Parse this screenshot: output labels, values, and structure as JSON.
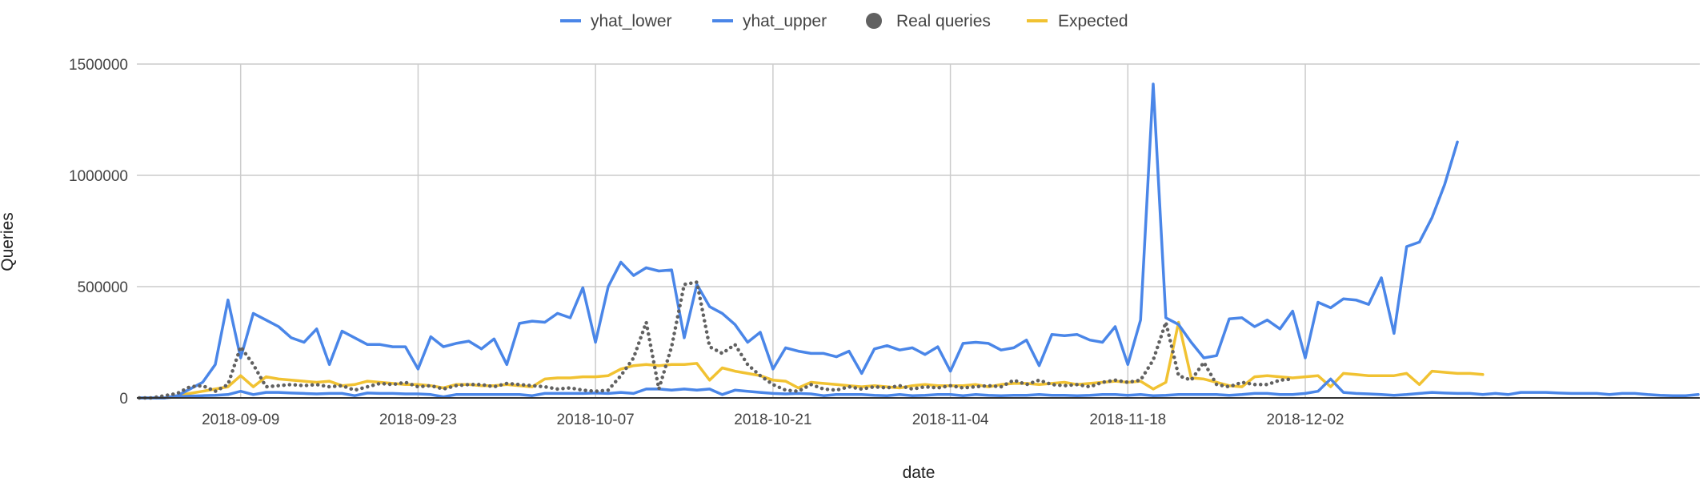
{
  "chart_data": {
    "type": "line",
    "xlabel": "date",
    "ylabel": "Queries",
    "ylim": [
      0,
      1500000
    ],
    "y_ticks": [
      0,
      500000,
      1000000,
      1500000
    ],
    "y_tick_labels": [
      "0",
      "500000",
      "1000000",
      "1500000"
    ],
    "x_start": "2018-09-01",
    "x_tick_labels": [
      "2018-09-09",
      "2018-09-23",
      "2018-10-07",
      "2018-10-21",
      "2018-11-04",
      "2018-11-18",
      "2018-12-02"
    ],
    "grid": true,
    "legend_position": "top",
    "colors": {
      "yhat_lower": "#4A86E8",
      "yhat_upper": "#4A86E8",
      "real": "#616161",
      "expected": "#F1C232",
      "grid": "#cccccc",
      "baseline": "#333333"
    },
    "series": [
      {
        "name": "yhat_lower",
        "style": "solid",
        "values": [
          0,
          0,
          0,
          5000,
          8000,
          10000,
          12000,
          15000,
          30000,
          15000,
          25000,
          25000,
          22000,
          20000,
          18000,
          20000,
          20000,
          10000,
          22000,
          20000,
          20000,
          18000,
          18000,
          15000,
          5000,
          15000,
          15000,
          15000,
          15000,
          15000,
          15000,
          10000,
          20000,
          20000,
          20000,
          20000,
          22000,
          20000,
          25000,
          20000,
          40000,
          40000,
          35000,
          40000,
          35000,
          40000,
          15000,
          35000,
          30000,
          25000,
          20000,
          18000,
          20000,
          18000,
          10000,
          15000,
          15000,
          15000,
          12000,
          10000,
          15000,
          10000,
          12000,
          15000,
          15000,
          10000,
          15000,
          12000,
          10000,
          12000,
          12000,
          15000,
          12000,
          12000,
          10000,
          12000,
          15000,
          15000,
          12000,
          15000,
          10000,
          12000,
          15000,
          15000,
          15000,
          15000,
          12000,
          15000,
          20000,
          20000,
          15000,
          15000,
          20000,
          30000,
          85000,
          25000,
          20000,
          18000,
          15000,
          12000,
          15000,
          20000,
          25000,
          22000,
          20000,
          20000,
          15000,
          20000,
          15000,
          25000,
          25000,
          25000,
          22000,
          20000,
          20000,
          20000,
          15000,
          20000,
          20000,
          15000,
          12000,
          10000,
          10000,
          15000
        ]
      },
      {
        "name": "yhat_upper",
        "style": "solid",
        "values": [
          0,
          0,
          0,
          10000,
          40000,
          70000,
          150000,
          440000,
          180000,
          380000,
          350000,
          320000,
          270000,
          250000,
          310000,
          150000,
          300000,
          270000,
          240000,
          240000,
          230000,
          230000,
          130000,
          275000,
          230000,
          245000,
          255000,
          220000,
          265000,
          150000,
          335000,
          345000,
          340000,
          380000,
          360000,
          495000,
          250000,
          500000,
          610000,
          550000,
          585000,
          570000,
          575000,
          270000,
          510000,
          410000,
          380000,
          330000,
          250000,
          295000,
          130000,
          225000,
          210000,
          200000,
          200000,
          185000,
          210000,
          110000,
          220000,
          235000,
          215000,
          225000,
          195000,
          230000,
          120000,
          245000,
          250000,
          245000,
          215000,
          225000,
          260000,
          145000,
          285000,
          280000,
          285000,
          260000,
          250000,
          320000,
          150000,
          350000,
          1410000,
          360000,
          330000,
          250000,
          180000,
          190000,
          355000,
          360000,
          320000,
          350000,
          310000,
          390000,
          180000,
          430000,
          405000,
          445000,
          440000,
          420000,
          540000,
          290000,
          680000,
          700000,
          810000,
          960000,
          1150000
        ]
      },
      {
        "name": "Real queries",
        "style": "dotted",
        "values": [
          0,
          0,
          10000,
          20000,
          50000,
          55000,
          30000,
          60000,
          230000,
          150000,
          50000,
          55000,
          60000,
          55000,
          60000,
          50000,
          55000,
          35000,
          50000,
          65000,
          60000,
          70000,
          50000,
          55000,
          40000,
          55000,
          60000,
          60000,
          50000,
          65000,
          60000,
          55000,
          50000,
          40000,
          45000,
          35000,
          30000,
          35000,
          100000,
          180000,
          340000,
          40000,
          230000,
          510000,
          520000,
          230000,
          200000,
          240000,
          150000,
          100000,
          60000,
          35000,
          30000,
          60000,
          40000,
          35000,
          50000,
          40000,
          50000,
          45000,
          55000,
          40000,
          50000,
          45000,
          55000,
          45000,
          50000,
          55000,
          50000,
          80000,
          60000,
          80000,
          60000,
          55000,
          60000,
          50000,
          70000,
          80000,
          70000,
          80000,
          170000,
          340000,
          100000,
          80000,
          160000,
          60000,
          50000,
          70000,
          60000,
          60000,
          80000,
          85000
        ]
      },
      {
        "name": "Expected",
        "style": "solid",
        "values": [
          0,
          0,
          0,
          10000,
          20000,
          30000,
          40000,
          50000,
          100000,
          50000,
          95000,
          85000,
          80000,
          75000,
          70000,
          75000,
          55000,
          60000,
          75000,
          70000,
          65000,
          60000,
          60000,
          55000,
          45000,
          60000,
          60000,
          55000,
          55000,
          60000,
          55000,
          50000,
          85000,
          90000,
          90000,
          95000,
          95000,
          100000,
          130000,
          145000,
          150000,
          145000,
          150000,
          150000,
          155000,
          80000,
          135000,
          120000,
          110000,
          100000,
          80000,
          75000,
          45000,
          70000,
          65000,
          60000,
          55000,
          50000,
          55000,
          50000,
          45000,
          55000,
          60000,
          55000,
          55000,
          55000,
          60000,
          50000,
          60000,
          65000,
          65000,
          60000,
          65000,
          70000,
          60000,
          65000,
          70000,
          75000,
          70000,
          75000,
          40000,
          70000,
          340000,
          90000,
          85000,
          70000,
          55000,
          50000,
          95000,
          100000,
          95000,
          90000,
          95000,
          100000,
          50000,
          110000,
          105000,
          100000,
          100000,
          100000,
          110000,
          60000,
          120000,
          115000,
          110000,
          110000,
          105000
        ]
      }
    ]
  }
}
